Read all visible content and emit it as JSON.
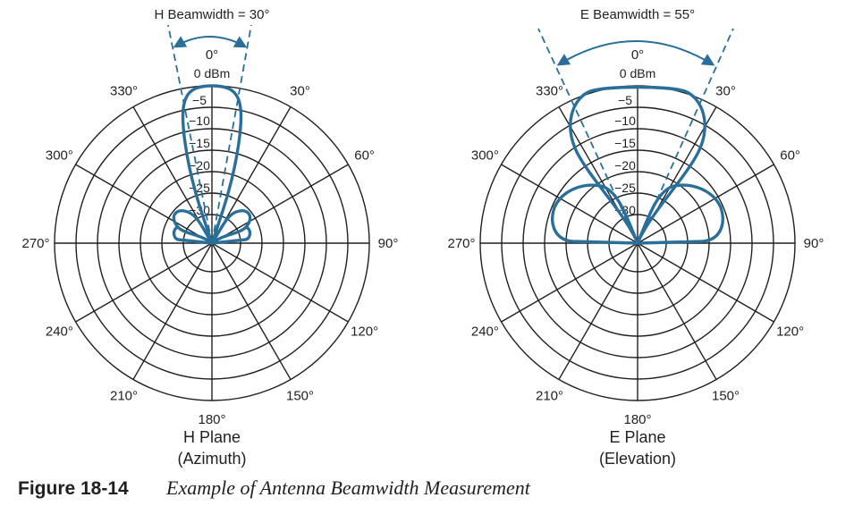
{
  "colors": {
    "grid": "#231f20",
    "pattern": "#2a6f9a",
    "text": "#231f20"
  },
  "angle_labels": [
    "0°",
    "30°",
    "60°",
    "90°",
    "120°",
    "150°",
    "180°",
    "210°",
    "240°",
    "270°",
    "300°",
    "330°"
  ],
  "ring_labels": [
    "0 dBm",
    "−5",
    "−10",
    "−15",
    "−20",
    "−25",
    "−30"
  ],
  "ring_levels_db": [
    0,
    -5,
    -10,
    -15,
    -20,
    -25,
    -30
  ],
  "plots": [
    {
      "beamwidth_label": "H Beamwidth = 30°",
      "beamwidth_deg": 30,
      "plane_title": "H Plane",
      "plane_subtitle": "(Azimuth)",
      "pattern": "narrow main lobe with two small side lobes"
    },
    {
      "beamwidth_label": "E Beamwidth = 55°",
      "beamwidth_deg": 55,
      "plane_title": "E Plane",
      "plane_subtitle": "(Elevation)",
      "pattern": "wide main lobe with two large side lobes"
    }
  ],
  "caption": {
    "number": "Figure 18-14",
    "text": "Example of Antenna Beamwidth Measurement"
  }
}
